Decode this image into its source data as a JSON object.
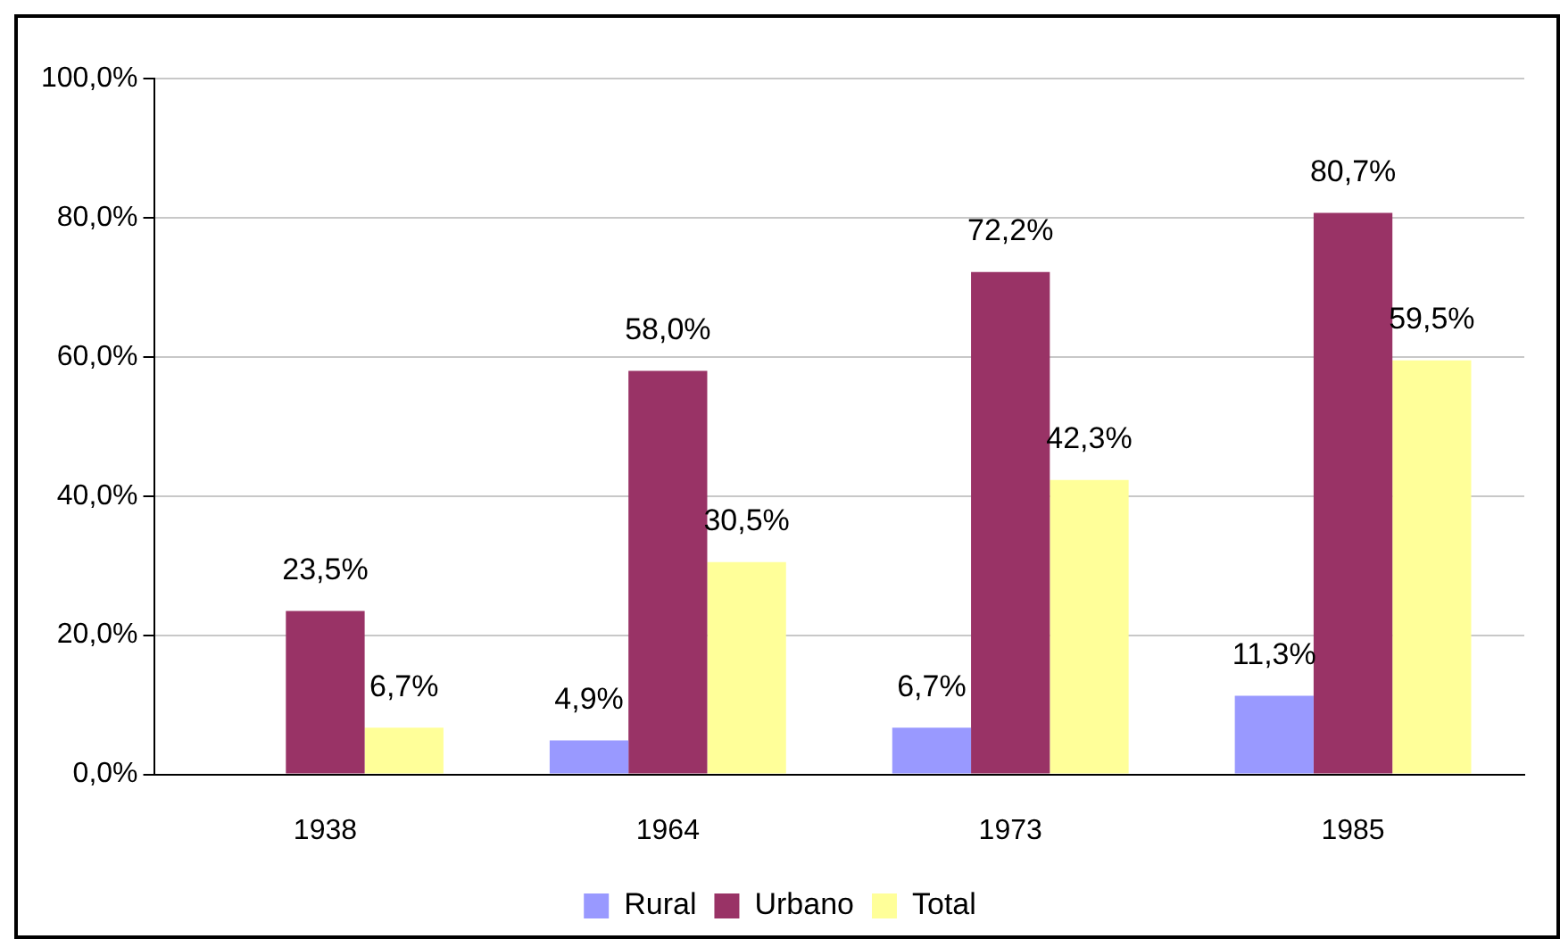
{
  "chart_data": {
    "type": "bar",
    "categories": [
      "1938",
      "1964",
      "1973",
      "1985"
    ],
    "series": [
      {
        "name": "Rural",
        "color": "#9999ff",
        "values": [
          null,
          4.9,
          6.7,
          11.3
        ],
        "value_labels": [
          null,
          "4,9%",
          "6,7%",
          "11,3%"
        ]
      },
      {
        "name": "Urbano",
        "color": "#993366",
        "values": [
          23.5,
          58.0,
          72.2,
          80.7
        ],
        "value_labels": [
          "23,5%",
          "58,0%",
          "72,2%",
          "80,7%"
        ]
      },
      {
        "name": "Total",
        "color": "#ffff99",
        "values": [
          6.7,
          30.5,
          42.3,
          59.5
        ],
        "value_labels": [
          "6,7%",
          "30,5%",
          "42,3%",
          "59,5%"
        ]
      }
    ],
    "ylim": [
      0,
      100
    ],
    "yticks": [
      {
        "value": 0,
        "label": "0,0%"
      },
      {
        "value": 20,
        "label": "20,0%"
      },
      {
        "value": 40,
        "label": "40,0%"
      },
      {
        "value": 60,
        "label": "60,0%"
      },
      {
        "value": 80,
        "label": "80,0%"
      },
      {
        "value": 100,
        "label": "100,0%"
      }
    ],
    "grid": "y",
    "legend": "bottom"
  }
}
